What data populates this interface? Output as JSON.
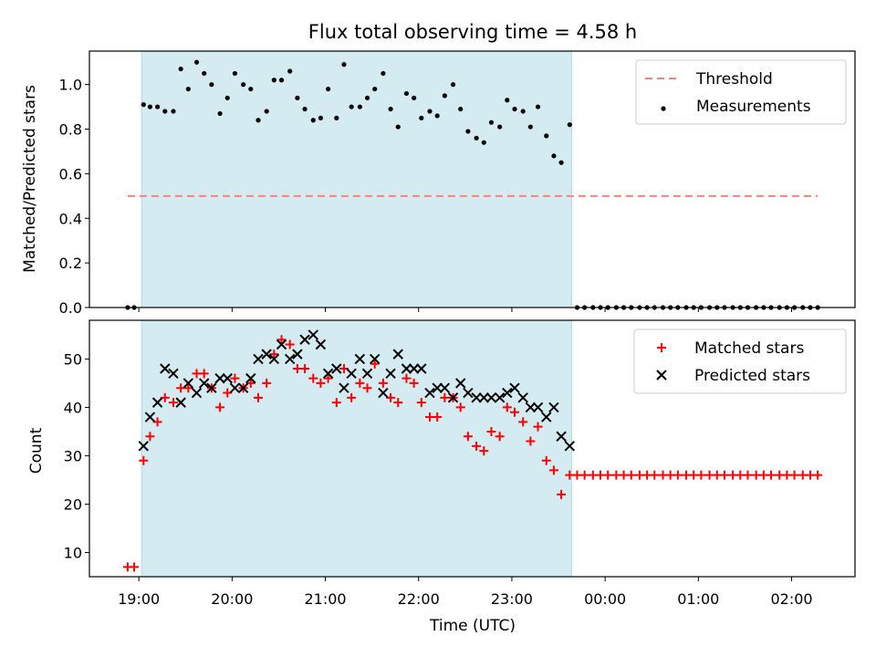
{
  "chart_data": [
    {
      "type": "scatter",
      "title": "Flux total observing time = 4.58 h",
      "ylabel": "Matched/Predicted stars",
      "xlabel": "",
      "x_unit": "hours (UTC, continuing past midnight)",
      "xlim": [
        18.47,
        26.68
      ],
      "ylim": [
        0,
        1.15
      ],
      "yticks": [
        0.0,
        0.2,
        0.4,
        0.6,
        0.8,
        1.0
      ],
      "ytick_labels": [
        "0.0",
        "0.2",
        "0.4",
        "0.6",
        "0.8",
        "1.0"
      ],
      "observing_window": [
        19.03,
        23.64
      ],
      "legend_position": "top-right",
      "legend": [
        {
          "label": "Threshold",
          "style": "dashed-line",
          "color": "#ff7f7f"
        },
        {
          "label": "Measurements",
          "style": "dot",
          "color": "#000000"
        }
      ],
      "threshold": {
        "name": "Threshold",
        "y": 0.5,
        "x_range": [
          18.88,
          26.28
        ]
      },
      "series": [
        {
          "name": "Measurements",
          "color": "#000000",
          "points": [
            [
              18.88,
              0
            ],
            [
              18.95,
              0
            ],
            [
              19.05,
              0.91
            ],
            [
              19.12,
              0.9
            ],
            [
              19.2,
              0.9
            ],
            [
              19.28,
              0.88
            ],
            [
              19.37,
              0.88
            ],
            [
              19.45,
              1.07
            ],
            [
              19.53,
              0.98
            ],
            [
              19.62,
              1.1
            ],
            [
              19.7,
              1.05
            ],
            [
              19.78,
              1.0
            ],
            [
              19.87,
              0.87
            ],
            [
              19.95,
              0.94
            ],
            [
              20.03,
              1.05
            ],
            [
              20.12,
              1.0
            ],
            [
              20.2,
              0.98
            ],
            [
              20.28,
              0.84
            ],
            [
              20.37,
              0.88
            ],
            [
              20.45,
              1.02
            ],
            [
              20.53,
              1.02
            ],
            [
              20.62,
              1.06
            ],
            [
              20.7,
              0.94
            ],
            [
              20.78,
              0.89
            ],
            [
              20.87,
              0.84
            ],
            [
              20.95,
              0.85
            ],
            [
              21.03,
              0.98
            ],
            [
              21.12,
              0.85
            ],
            [
              21.2,
              1.09
            ],
            [
              21.28,
              0.9
            ],
            [
              21.37,
              0.9
            ],
            [
              21.45,
              0.94
            ],
            [
              21.53,
              0.98
            ],
            [
              21.62,
              1.05
            ],
            [
              21.7,
              0.89
            ],
            [
              21.78,
              0.81
            ],
            [
              21.87,
              0.96
            ],
            [
              21.95,
              0.94
            ],
            [
              22.03,
              0.85
            ],
            [
              22.12,
              0.88
            ],
            [
              22.2,
              0.86
            ],
            [
              22.28,
              0.95
            ],
            [
              22.37,
              1.0
            ],
            [
              22.45,
              0.89
            ],
            [
              22.53,
              0.79
            ],
            [
              22.62,
              0.76
            ],
            [
              22.7,
              0.74
            ],
            [
              22.78,
              0.83
            ],
            [
              22.87,
              0.81
            ],
            [
              22.95,
              0.93
            ],
            [
              23.03,
              0.89
            ],
            [
              23.12,
              0.88
            ],
            [
              23.2,
              0.81
            ],
            [
              23.28,
              0.9
            ],
            [
              23.37,
              0.77
            ],
            [
              23.45,
              0.68
            ],
            [
              23.53,
              0.65
            ],
            [
              23.62,
              0.82
            ],
            [
              23.7,
              0
            ],
            [
              23.78,
              0
            ],
            [
              23.87,
              0
            ],
            [
              23.95,
              0
            ],
            [
              24.03,
              0
            ],
            [
              24.12,
              0
            ],
            [
              24.2,
              0
            ],
            [
              24.28,
              0
            ],
            [
              24.37,
              0
            ],
            [
              24.45,
              0
            ],
            [
              24.53,
              0
            ],
            [
              24.62,
              0
            ],
            [
              24.7,
              0
            ],
            [
              24.78,
              0
            ],
            [
              24.87,
              0
            ],
            [
              24.95,
              0
            ],
            [
              25.03,
              0
            ],
            [
              25.12,
              0
            ],
            [
              25.2,
              0
            ],
            [
              25.28,
              0
            ],
            [
              25.37,
              0
            ],
            [
              25.45,
              0
            ],
            [
              25.53,
              0
            ],
            [
              25.62,
              0
            ],
            [
              25.7,
              0
            ],
            [
              25.78,
              0
            ],
            [
              25.87,
              0
            ],
            [
              25.95,
              0
            ],
            [
              26.03,
              0
            ],
            [
              26.12,
              0
            ],
            [
              26.2,
              0
            ],
            [
              26.28,
              0
            ]
          ]
        }
      ]
    },
    {
      "type": "scatter",
      "title": "",
      "xlabel": "Time (UTC)",
      "ylabel": "Count",
      "x_unit": "hours (UTC, continuing past midnight)",
      "xlim": [
        18.47,
        26.68
      ],
      "ylim": [
        5,
        58
      ],
      "xticks": [
        19,
        20,
        21,
        22,
        23,
        24,
        25,
        26
      ],
      "xtick_labels": [
        "19:00",
        "20:00",
        "21:00",
        "22:00",
        "23:00",
        "00:00",
        "01:00",
        "02:00"
      ],
      "yticks": [
        10,
        20,
        30,
        40,
        50
      ],
      "ytick_labels": [
        "10",
        "20",
        "30",
        "40",
        "50"
      ],
      "observing_window": [
        19.03,
        23.64
      ],
      "legend_position": "top-right",
      "legend": [
        {
          "label": "Matched stars",
          "style": "plus",
          "color": "#ff0000"
        },
        {
          "label": "Predicted stars",
          "style": "x",
          "color": "#000000"
        }
      ],
      "series": [
        {
          "name": "Matched stars",
          "color": "#ff0000",
          "points": [
            [
              18.88,
              7
            ],
            [
              18.95,
              7
            ],
            [
              19.05,
              29
            ],
            [
              19.12,
              34
            ],
            [
              19.2,
              37
            ],
            [
              19.28,
              42
            ],
            [
              19.37,
              41
            ],
            [
              19.45,
              44
            ],
            [
              19.53,
              44
            ],
            [
              19.62,
              47
            ],
            [
              19.7,
              47
            ],
            [
              19.78,
              44
            ],
            [
              19.87,
              40
            ],
            [
              19.95,
              43
            ],
            [
              20.03,
              46
            ],
            [
              20.12,
              44
            ],
            [
              20.2,
              45
            ],
            [
              20.28,
              42
            ],
            [
              20.37,
              45
            ],
            [
              20.45,
              51
            ],
            [
              20.53,
              54
            ],
            [
              20.62,
              53
            ],
            [
              20.7,
              48
            ],
            [
              20.78,
              48
            ],
            [
              20.87,
              46
            ],
            [
              20.95,
              45
            ],
            [
              21.03,
              46
            ],
            [
              21.12,
              41
            ],
            [
              21.2,
              48
            ],
            [
              21.28,
              42
            ],
            [
              21.37,
              45
            ],
            [
              21.45,
              44
            ],
            [
              21.53,
              49
            ],
            [
              21.62,
              45
            ],
            [
              21.7,
              42
            ],
            [
              21.78,
              41
            ],
            [
              21.87,
              46
            ],
            [
              21.95,
              45
            ],
            [
              22.03,
              41
            ],
            [
              22.12,
              38
            ],
            [
              22.2,
              38
            ],
            [
              22.28,
              42
            ],
            [
              22.37,
              42
            ],
            [
              22.45,
              40
            ],
            [
              22.53,
              34
            ],
            [
              22.62,
              32
            ],
            [
              22.7,
              31
            ],
            [
              22.78,
              35
            ],
            [
              22.87,
              34
            ],
            [
              22.95,
              40
            ],
            [
              23.03,
              39
            ],
            [
              23.12,
              37
            ],
            [
              23.2,
              33
            ],
            [
              23.28,
              36
            ],
            [
              23.37,
              29
            ],
            [
              23.45,
              27
            ],
            [
              23.53,
              22
            ],
            [
              23.62,
              26
            ],
            [
              23.7,
              26
            ],
            [
              23.78,
              26
            ],
            [
              23.87,
              26
            ],
            [
              23.95,
              26
            ],
            [
              24.03,
              26
            ],
            [
              24.12,
              26
            ],
            [
              24.2,
              26
            ],
            [
              24.28,
              26
            ],
            [
              24.37,
              26
            ],
            [
              24.45,
              26
            ],
            [
              24.53,
              26
            ],
            [
              24.62,
              26
            ],
            [
              24.7,
              26
            ],
            [
              24.78,
              26
            ],
            [
              24.87,
              26
            ],
            [
              24.95,
              26
            ],
            [
              25.03,
              26
            ],
            [
              25.12,
              26
            ],
            [
              25.2,
              26
            ],
            [
              25.28,
              26
            ],
            [
              25.37,
              26
            ],
            [
              25.45,
              26
            ],
            [
              25.53,
              26
            ],
            [
              25.62,
              26
            ],
            [
              25.7,
              26
            ],
            [
              25.78,
              26
            ],
            [
              25.87,
              26
            ],
            [
              25.95,
              26
            ],
            [
              26.03,
              26
            ],
            [
              26.12,
              26
            ],
            [
              26.2,
              26
            ],
            [
              26.28,
              26
            ]
          ]
        },
        {
          "name": "Predicted stars",
          "color": "#000000",
          "points": [
            [
              19.05,
              32
            ],
            [
              19.12,
              38
            ],
            [
              19.2,
              41
            ],
            [
              19.28,
              48
            ],
            [
              19.37,
              47
            ],
            [
              19.45,
              41
            ],
            [
              19.53,
              45
            ],
            [
              19.62,
              43
            ],
            [
              19.7,
              45
            ],
            [
              19.78,
              44
            ],
            [
              19.87,
              46
            ],
            [
              19.95,
              46
            ],
            [
              20.03,
              44
            ],
            [
              20.12,
              44
            ],
            [
              20.2,
              46
            ],
            [
              20.28,
              50
            ],
            [
              20.37,
              51
            ],
            [
              20.45,
              50
            ],
            [
              20.53,
              53
            ],
            [
              20.62,
              50
            ],
            [
              20.7,
              51
            ],
            [
              20.78,
              54
            ],
            [
              20.87,
              55
            ],
            [
              20.95,
              53
            ],
            [
              21.03,
              47
            ],
            [
              21.12,
              48
            ],
            [
              21.2,
              44
            ],
            [
              21.28,
              47
            ],
            [
              21.37,
              50
            ],
            [
              21.45,
              47
            ],
            [
              21.53,
              50
            ],
            [
              21.62,
              43
            ],
            [
              21.7,
              47
            ],
            [
              21.78,
              51
            ],
            [
              21.87,
              48
            ],
            [
              21.95,
              48
            ],
            [
              22.03,
              48
            ],
            [
              22.12,
              43
            ],
            [
              22.2,
              44
            ],
            [
              22.28,
              44
            ],
            [
              22.37,
              42
            ],
            [
              22.45,
              45
            ],
            [
              22.53,
              43
            ],
            [
              22.62,
              42
            ],
            [
              22.7,
              42
            ],
            [
              22.78,
              42
            ],
            [
              22.87,
              42
            ],
            [
              22.95,
              43
            ],
            [
              23.03,
              44
            ],
            [
              23.12,
              42
            ],
            [
              23.2,
              40
            ],
            [
              23.28,
              40
            ],
            [
              23.37,
              38
            ],
            [
              23.45,
              40
            ],
            [
              23.53,
              34
            ],
            [
              23.62,
              32
            ]
          ]
        }
      ]
    }
  ],
  "colors": {
    "observing_window": "#d4ebf1",
    "observing_window_edge": "#a9d8e3",
    "threshold": "#ff7f7f",
    "matched": "#ff0000",
    "predicted": "#000000",
    "measurements": "#000000"
  }
}
